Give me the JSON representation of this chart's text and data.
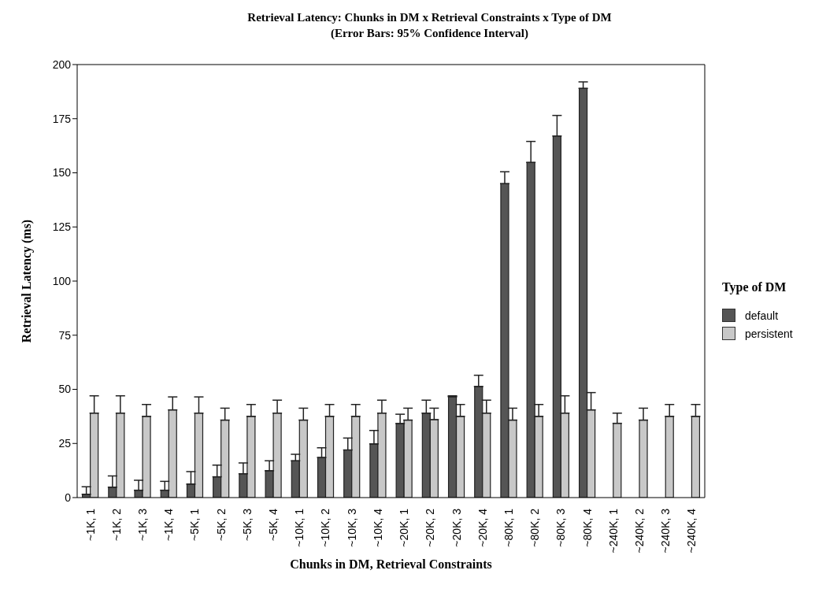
{
  "chart_data": {
    "type": "bar",
    "title": "Retrieval Latency: Chunks in DM x Retrieval Constraints x Type of DM",
    "subtitle": "(Error Bars: 95%  Confidence Interval)",
    "xlabel": "Chunks in DM, Retrieval Constraints",
    "ylabel": "Retrieval Latency (ms)",
    "legend_title": "Type of DM",
    "legend": "right",
    "categories": [
      "~1K, 1",
      "~1K, 2",
      "~1K, 3",
      "~1K, 4",
      "~5K, 1",
      "~5K, 2",
      "~5K, 3",
      "~5K, 4",
      "~10K, 1",
      "~10K, 2",
      "~10K, 3",
      "~10K, 4",
      "~20K, 1",
      "~20K, 2",
      "~20K, 3",
      "~20K, 4",
      "~80K, 1",
      "~80K, 2",
      "~80K, 3",
      "~80K, 4",
      "~240K, 1",
      "~240K, 2",
      "~240K, 3",
      "~240K, 4"
    ],
    "series": [
      {
        "name": "default",
        "color": "#555555",
        "values": [
          1.5,
          4.8,
          3.4,
          3.4,
          6.2,
          9.6,
          11,
          12.4,
          17,
          18.5,
          22,
          24.8,
          34.2,
          39,
          46.6,
          51.3,
          145,
          154.8,
          167,
          189,
          null,
          null,
          null,
          null
        ],
        "errors": [
          [
            1.5,
            5
          ],
          [
            4.8,
            10
          ],
          [
            3.4,
            8
          ],
          [
            3.4,
            7.5
          ],
          [
            6.2,
            12
          ],
          [
            9.6,
            15
          ],
          [
            11,
            16
          ],
          [
            12.4,
            17
          ],
          [
            17,
            20
          ],
          [
            18.5,
            23
          ],
          [
            22,
            27.5
          ],
          [
            24.8,
            31
          ],
          [
            34.2,
            38.5
          ],
          [
            39,
            45
          ],
          [
            46.6,
            47
          ],
          [
            51.3,
            56.5
          ],
          [
            145,
            150.5
          ],
          [
            154.8,
            164.5
          ],
          [
            167,
            176.5
          ],
          [
            189,
            192
          ],
          null,
          null,
          null,
          null
        ]
      },
      {
        "name": "persistent",
        "color": "#c8c8c8",
        "values": [
          39,
          39,
          37.5,
          40.5,
          39,
          35.8,
          37.5,
          39,
          35.8,
          37.5,
          37.5,
          39,
          35.8,
          36,
          37.5,
          39,
          35.8,
          37.5,
          39,
          40.5,
          34.3,
          35.8,
          37.5,
          37.5
        ],
        "errors": [
          [
            39,
            47
          ],
          [
            39,
            47
          ],
          [
            37.5,
            43
          ],
          [
            40.5,
            46.5
          ],
          [
            39,
            46.5
          ],
          [
            35.8,
            41.3
          ],
          [
            37.5,
            43
          ],
          [
            39,
            45
          ],
          [
            35.8,
            41.3
          ],
          [
            37.5,
            43
          ],
          [
            37.5,
            43
          ],
          [
            39,
            45
          ],
          [
            35.8,
            41.3
          ],
          [
            36,
            41.3
          ],
          [
            37.5,
            43
          ],
          [
            39,
            45
          ],
          [
            35.8,
            41.3
          ],
          [
            37.5,
            43
          ],
          [
            39,
            47
          ],
          [
            40.5,
            48.5
          ],
          [
            34.3,
            39
          ],
          [
            35.8,
            41.3
          ],
          [
            37.5,
            43
          ],
          [
            37.5,
            43
          ]
        ]
      }
    ],
    "ylim": [
      0,
      200
    ],
    "yticks": [
      0,
      25,
      50,
      75,
      100,
      125,
      150,
      175,
      200
    ],
    "grid": false
  }
}
